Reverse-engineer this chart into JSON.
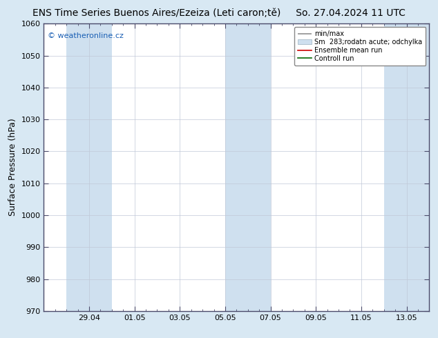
{
  "title": "ENS Time Series Buenos Aires/Ezeiza (Leti caron;tě)",
  "date_label": "So. 27.04.2024 11 UTC",
  "ylabel": "Surface Pressure (hPa)",
  "ylim": [
    970,
    1060
  ],
  "yticks": [
    970,
    980,
    990,
    1000,
    1010,
    1020,
    1030,
    1040,
    1050,
    1060
  ],
  "x_tick_labels": [
    "29.04",
    "01.05",
    "03.05",
    "05.05",
    "07.05",
    "09.05",
    "11.05",
    "13.05"
  ],
  "x_tick_days": [
    2,
    4,
    6,
    8,
    10,
    12,
    14,
    16
  ],
  "xlim": [
    0,
    17
  ],
  "shaded_ranges": [
    [
      1,
      3
    ],
    [
      8,
      10
    ],
    [
      15,
      17
    ]
  ],
  "shaded_color": "#cfe0ef",
  "watermark": "© weatheronline.cz",
  "legend_entries": [
    "min/max",
    "Sm  283;rodatn acute; odchylka",
    "Ensemble mean run",
    "Controll run"
  ],
  "fig_bg_color": "#d8e8f3",
  "plot_bg_color": "#ffffff",
  "border_color": "#4a4a6a",
  "title_fontsize": 10,
  "tick_fontsize": 8,
  "ylabel_fontsize": 9,
  "watermark_color": "#1a5fb4",
  "grid_color": "#c0c8d8",
  "minmax_color": "#909090",
  "sm_color": "#cfe0ef",
  "ensemble_color": "#cc0000",
  "control_color": "#006600"
}
